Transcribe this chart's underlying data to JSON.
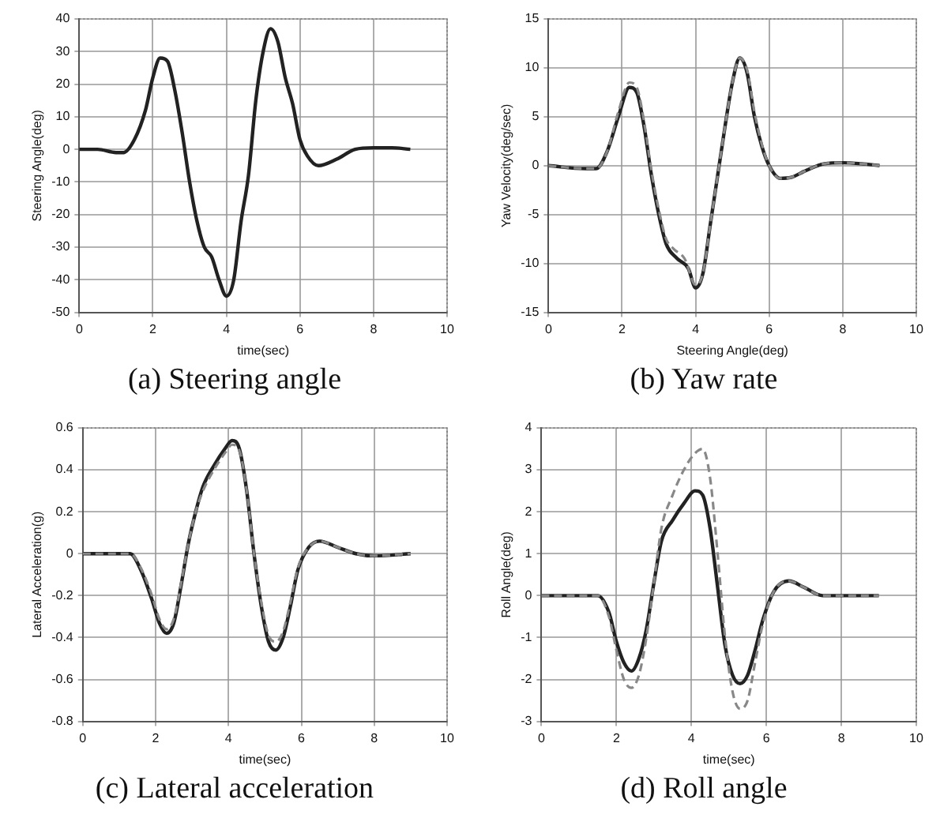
{
  "chart_data": [
    {
      "type": "line",
      "title": "(a) Steering angle",
      "xlabel": "time(sec)",
      "ylabel": "Steering Angle(deg)",
      "xlim": [
        0,
        10
      ],
      "xticks": [
        0,
        2,
        4,
        6,
        8,
        10
      ],
      "ylim": [
        -50,
        40
      ],
      "yticks": [
        -50,
        -40,
        -30,
        -20,
        -10,
        0,
        10,
        20,
        30,
        40
      ],
      "grid": true,
      "legend": false,
      "series": [
        {
          "color": "#222222",
          "line_style": "solid",
          "x": [
            0,
            0.5,
            1,
            1.2,
            1.5,
            1.8,
            2,
            2.2,
            2.4,
            2.6,
            2.8,
            3,
            3.2,
            3.4,
            3.6,
            3.8,
            4,
            4.2,
            4.4,
            4.6,
            4.8,
            5,
            5.2,
            5.4,
            5.6,
            5.8,
            6,
            6.2,
            6.5,
            7,
            7.5,
            8,
            8.5,
            9
          ],
          "values": [
            0,
            0,
            -1,
            -1,
            3,
            12,
            22,
            28,
            27,
            18,
            5,
            -10,
            -22,
            -30,
            -33,
            -40,
            -45,
            -40,
            -22,
            -8,
            15,
            30,
            37,
            33,
            22,
            14,
            3,
            -2,
            -5,
            -3,
            0,
            0.5,
            0.5,
            0
          ]
        }
      ]
    },
    {
      "type": "line",
      "title": "(b) Yaw rate",
      "xlabel": "Steering Angle(deg)",
      "ylabel": "Yaw Velocity(deg/sec)",
      "xlim": [
        0,
        10
      ],
      "xticks": [
        0,
        2,
        4,
        6,
        8,
        10
      ],
      "ylim": [
        -15,
        15
      ],
      "yticks": [
        -15,
        -10,
        -5,
        0,
        5,
        10,
        15
      ],
      "grid": true,
      "legend": false,
      "series": [
        {
          "color": "#888888",
          "line_style": "dashed",
          "x": [
            0,
            1,
            1.3,
            1.6,
            1.9,
            2.2,
            2.4,
            2.6,
            2.8,
            3,
            3.2,
            3.4,
            3.7,
            4,
            4.2,
            4.4,
            4.6,
            4.8,
            5,
            5.2,
            5.4,
            5.6,
            5.8,
            6,
            6.3,
            6.6,
            7,
            7.5,
            8,
            8.5,
            9
          ],
          "values": [
            0,
            -0.3,
            -0.3,
            1.5,
            5.5,
            8.5,
            8,
            4.5,
            -0.5,
            -4.5,
            -7.5,
            -8.5,
            -9.5,
            -12.2,
            -11,
            -6,
            -1,
            4,
            8.5,
            11,
            9.8,
            5.5,
            2.2,
            0,
            -1.3,
            -1.2,
            -0.5,
            0.2,
            0.3,
            0.2,
            0
          ]
        },
        {
          "color": "#222222",
          "line_style": "solid",
          "x": [
            0,
            1,
            1.3,
            1.6,
            1.9,
            2.2,
            2.4,
            2.6,
            2.8,
            3,
            3.2,
            3.5,
            3.8,
            4,
            4.2,
            4.4,
            4.6,
            4.8,
            5,
            5.2,
            5.4,
            5.6,
            5.8,
            6,
            6.3,
            6.6,
            7,
            7.5,
            8,
            8.5,
            9
          ],
          "values": [
            0,
            -0.3,
            -0.3,
            1.5,
            5,
            8,
            7.5,
            4,
            -1,
            -5,
            -8,
            -9.5,
            -10.5,
            -12.5,
            -11,
            -6,
            -1,
            4,
            8.5,
            11,
            9.5,
            5,
            2,
            0,
            -1.3,
            -1.2,
            -0.5,
            0.2,
            0.3,
            0.2,
            0
          ]
        }
      ]
    },
    {
      "type": "line",
      "title": "(c) Lateral acceleration",
      "xlabel": "time(sec)",
      "ylabel": "Lateral Acceleration(g)",
      "xlim": [
        0,
        10
      ],
      "xticks": [
        0,
        2,
        4,
        6,
        8,
        10
      ],
      "ylim": [
        -0.8,
        0.6
      ],
      "yticks": [
        -0.8,
        -0.6,
        -0.4,
        -0.2,
        0,
        0.2,
        0.4,
        0.6
      ],
      "grid": true,
      "legend": false,
      "series": [
        {
          "color": "#888888",
          "line_style": "dashed",
          "x": [
            0,
            1.3,
            1.6,
            1.9,
            2.1,
            2.3,
            2.5,
            2.7,
            2.9,
            3.1,
            3.3,
            3.6,
            3.9,
            4.1,
            4.3,
            4.5,
            4.7,
            4.9,
            5.1,
            5.3,
            5.5,
            5.7,
            5.9,
            6.2,
            6.5,
            7,
            7.5,
            8,
            9
          ],
          "values": [
            0,
            0,
            -0.07,
            -0.2,
            -0.31,
            -0.36,
            -0.31,
            -0.14,
            0.05,
            0.2,
            0.3,
            0.4,
            0.48,
            0.52,
            0.49,
            0.3,
            0,
            -0.23,
            -0.39,
            -0.42,
            -0.37,
            -0.23,
            -0.07,
            0.03,
            0.06,
            0.03,
            0,
            -0.01,
            0
          ]
        },
        {
          "color": "#222222",
          "line_style": "solid",
          "x": [
            0,
            1.3,
            1.6,
            1.9,
            2.1,
            2.3,
            2.5,
            2.7,
            2.9,
            3.1,
            3.3,
            3.6,
            3.9,
            4.1,
            4.3,
            4.5,
            4.7,
            4.9,
            5.1,
            5.3,
            5.5,
            5.7,
            5.9,
            6.2,
            6.5,
            7,
            7.5,
            8,
            9
          ],
          "values": [
            0,
            0,
            -0.08,
            -0.22,
            -0.33,
            -0.38,
            -0.33,
            -0.15,
            0.05,
            0.2,
            0.32,
            0.42,
            0.5,
            0.54,
            0.5,
            0.3,
            0,
            -0.25,
            -0.42,
            -0.46,
            -0.4,
            -0.25,
            -0.08,
            0.03,
            0.06,
            0.03,
            0,
            -0.01,
            0
          ]
        }
      ]
    },
    {
      "type": "line",
      "title": "(d) Roll angle",
      "xlabel": "time(sec)",
      "ylabel": "Roll Angle(deg)",
      "xlim": [
        0,
        10
      ],
      "xticks": [
        0,
        2,
        4,
        6,
        8,
        10
      ],
      "ylim": [
        -3,
        4
      ],
      "yticks": [
        -3,
        -2,
        -1,
        0,
        1,
        2,
        3,
        4
      ],
      "grid": true,
      "legend": false,
      "series": [
        {
          "color": "#888888",
          "line_style": "dashed",
          "x": [
            0,
            1.5,
            1.8,
            2,
            2.2,
            2.4,
            2.6,
            2.8,
            3,
            3.2,
            3.5,
            3.8,
            4.1,
            4.3,
            4.5,
            4.7,
            4.9,
            5.1,
            5.3,
            5.5,
            5.7,
            5.9,
            6.2,
            6.6,
            7,
            7.5,
            9
          ],
          "values": [
            0,
            0,
            -0.5,
            -1.3,
            -2,
            -2.2,
            -1.9,
            -1,
            0.3,
            1.6,
            2.4,
            3,
            3.4,
            3.5,
            2.8,
            1,
            -1,
            -2.3,
            -2.7,
            -2.5,
            -1.6,
            -0.7,
            0.1,
            0.35,
            0.2,
            0,
            0
          ]
        },
        {
          "color": "#222222",
          "line_style": "solid",
          "x": [
            0,
            1.5,
            1.8,
            2,
            2.2,
            2.4,
            2.6,
            2.8,
            3,
            3.2,
            3.5,
            3.8,
            4.1,
            4.3,
            4.5,
            4.7,
            4.9,
            5.1,
            5.3,
            5.5,
            5.7,
            5.9,
            6.2,
            6.6,
            7,
            7.5,
            9
          ],
          "values": [
            0,
            0,
            -0.4,
            -1.1,
            -1.6,
            -1.8,
            -1.5,
            -0.8,
            0.3,
            1.3,
            1.8,
            2.2,
            2.5,
            2.4,
            1.6,
            0.2,
            -1.2,
            -1.9,
            -2.1,
            -1.9,
            -1.3,
            -0.6,
            0.1,
            0.35,
            0.2,
            0,
            0
          ]
        }
      ]
    }
  ]
}
